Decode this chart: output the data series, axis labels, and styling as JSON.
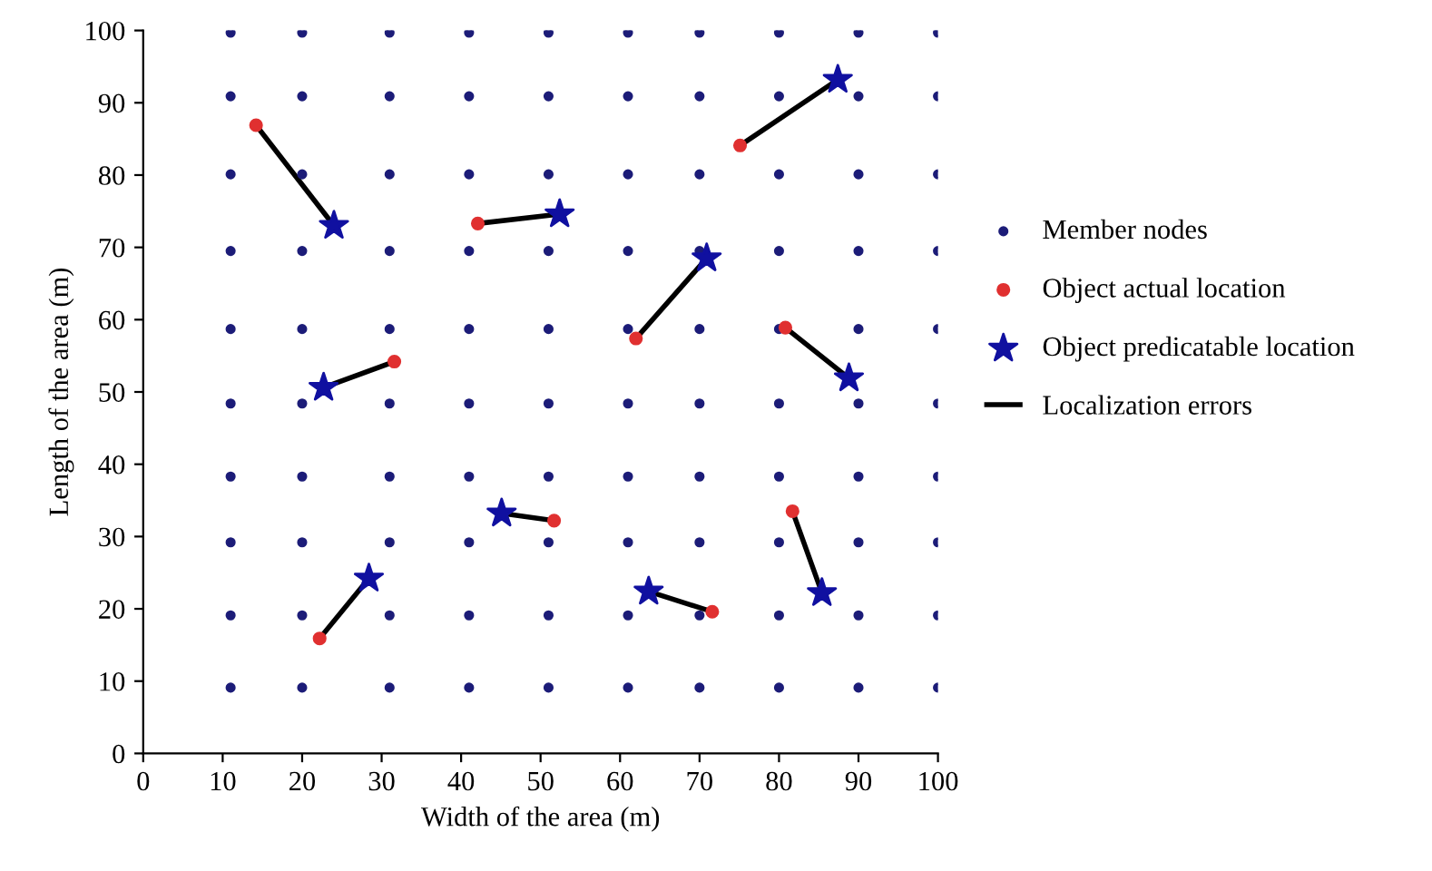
{
  "chart_data": {
    "type": "scatter",
    "xlabel": "Width of the area (m)",
    "ylabel": "Length of the area (m)",
    "xlim": [
      0,
      100
    ],
    "ylim": [
      0,
      100
    ],
    "xticks": [
      0,
      10,
      20,
      30,
      40,
      50,
      60,
      70,
      80,
      90,
      100
    ],
    "yticks": [
      0,
      10,
      20,
      30,
      40,
      50,
      60,
      70,
      80,
      90,
      100
    ],
    "grid": false,
    "legend": "right",
    "series": [
      {
        "name": "Member nodes",
        "marker": "circle",
        "color": "#1c1c78",
        "x": [
          11,
          20,
          31,
          41,
          51,
          61,
          70,
          80,
          90,
          100,
          11,
          20,
          31,
          41,
          51,
          61,
          70,
          80,
          90,
          100,
          11,
          20,
          31,
          41,
          51,
          61,
          70,
          80,
          90,
          100,
          11,
          20,
          31,
          41,
          51,
          61,
          70,
          80,
          90,
          100,
          11,
          20,
          31,
          41,
          51,
          61,
          70,
          80,
          90,
          100,
          11,
          20,
          31,
          41,
          51,
          61,
          70,
          80,
          90,
          100,
          11,
          20,
          31,
          41,
          51,
          61,
          70,
          80,
          90,
          100,
          11,
          20,
          31,
          41,
          51,
          61,
          70,
          80,
          90,
          100,
          11,
          20,
          31,
          41,
          51,
          61,
          70,
          80,
          90,
          100,
          11,
          20,
          31,
          41,
          51,
          61,
          70,
          80,
          90,
          100
        ],
        "values": [
          99.7,
          99.7,
          99.7,
          99.7,
          99.7,
          99.7,
          99.7,
          99.7,
          99.7,
          99.7,
          90.9,
          90.9,
          90.9,
          90.9,
          90.9,
          90.9,
          90.9,
          90.9,
          90.9,
          90.9,
          80.1,
          80.1,
          80.1,
          80.1,
          80.1,
          80.1,
          80.1,
          80.1,
          80.1,
          80.1,
          69.5,
          69.5,
          69.5,
          69.5,
          69.5,
          69.5,
          69.5,
          69.5,
          69.5,
          69.5,
          58.7,
          58.7,
          58.7,
          58.7,
          58.7,
          58.7,
          58.7,
          58.7,
          58.7,
          58.7,
          48.4,
          48.4,
          48.4,
          48.4,
          48.4,
          48.4,
          48.4,
          48.4,
          48.4,
          48.4,
          38.3,
          38.3,
          38.3,
          38.3,
          38.3,
          38.3,
          38.3,
          38.3,
          38.3,
          38.3,
          29.2,
          29.2,
          29.2,
          29.2,
          29.2,
          29.2,
          29.2,
          29.2,
          29.2,
          29.2,
          19.1,
          19.1,
          19.1,
          19.1,
          19.1,
          19.1,
          19.1,
          19.1,
          19.1,
          19.1,
          9.1,
          9.1,
          9.1,
          9.1,
          9.1,
          9.1,
          9.1,
          9.1,
          9.1,
          9.1
        ]
      },
      {
        "name": "Object actual location",
        "marker": "circle",
        "color": "#e03030",
        "x": [
          14.2,
          42.1,
          75.1,
          31.6,
          62.0,
          80.8,
          22.2,
          51.7,
          71.6,
          81.7
        ],
        "values": [
          86.9,
          73.3,
          84.1,
          54.2,
          57.4,
          58.9,
          15.9,
          32.2,
          19.6,
          33.5
        ]
      },
      {
        "name": "Object predicatable location",
        "marker": "star",
        "color": "#1010a0",
        "x": [
          24.0,
          52.4,
          87.4,
          22.7,
          70.9,
          88.8,
          28.4,
          45.1,
          63.6,
          85.4
        ],
        "values": [
          73.0,
          74.6,
          93.2,
          50.6,
          68.5,
          51.9,
          24.2,
          33.2,
          22.4,
          22.2
        ]
      },
      {
        "name": "Localization errors",
        "type": "line",
        "marker": "none",
        "line_style": "solid",
        "color": "#000000",
        "x": [
          14.2,
          24.0,
          null,
          42.1,
          52.4,
          null,
          75.1,
          87.4,
          null,
          31.6,
          22.7,
          null,
          62.0,
          70.9,
          null,
          80.8,
          88.8,
          null,
          22.2,
          28.4,
          null,
          51.7,
          45.1,
          null,
          71.6,
          63.6,
          null,
          81.7,
          85.4
        ],
        "values": [
          86.9,
          73.0,
          null,
          73.3,
          74.6,
          null,
          84.1,
          93.2,
          null,
          54.2,
          50.6,
          null,
          57.4,
          68.5,
          null,
          58.9,
          51.9,
          null,
          15.9,
          24.2,
          null,
          32.2,
          33.2,
          null,
          19.6,
          22.4,
          null,
          33.5,
          22.2
        ]
      }
    ]
  }
}
